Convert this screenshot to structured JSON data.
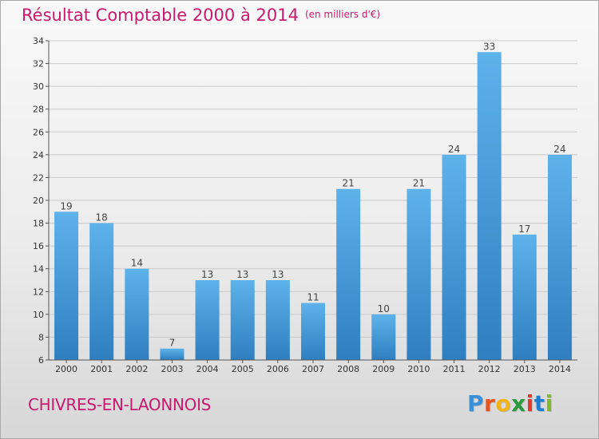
{
  "chart_data": {
    "type": "bar",
    "title": "Résultat Comptable 2000 à 2014",
    "subtitle": "(en milliers d'€)",
    "categories": [
      "2000",
      "2001",
      "2002",
      "2003",
      "2004",
      "2005",
      "2006",
      "2007",
      "2008",
      "2009",
      "2010",
      "2011",
      "2012",
      "2013",
      "2014"
    ],
    "values": [
      19,
      18,
      14,
      7,
      13,
      13,
      13,
      11,
      21,
      10,
      21,
      24,
      33,
      17,
      24
    ],
    "ylim": [
      6,
      34
    ],
    "yticks": [
      6,
      8,
      10,
      12,
      14,
      16,
      18,
      20,
      22,
      24,
      26,
      28,
      30,
      32,
      34
    ],
    "xlabel": "",
    "ylabel": "",
    "grid": true,
    "colors": {
      "bar_light": "#5eb2ea",
      "bar_dark": "#2f7fc0",
      "accent": "#c8196e"
    }
  },
  "footer": {
    "town": "CHIVRES-EN-LAONNOIS",
    "logo_letters": [
      "P",
      "r",
      "o",
      "x",
      "i",
      "t",
      "i"
    ],
    "logo_colors": [
      "#3a8fd6",
      "#e8541e",
      "#f0b417",
      "#2a9a3c",
      "#e23b2d",
      "#1e7fd0",
      "#7dbb2a"
    ]
  }
}
